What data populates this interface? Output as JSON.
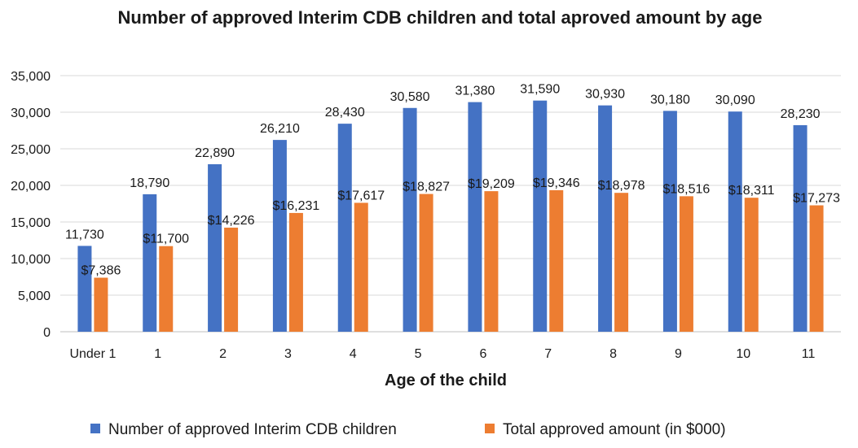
{
  "chart_data": {
    "type": "bar",
    "title": "Number of approved Interim CDB children and total aproved amount by age",
    "xlabel": "Age of the child",
    "ylabel": "",
    "ylim": [
      0,
      35000
    ],
    "yticks": [
      0,
      5000,
      10000,
      15000,
      20000,
      25000,
      30000,
      35000
    ],
    "ytick_labels": [
      "0",
      "5,000",
      "10,000",
      "15,000",
      "20,000",
      "25,000",
      "30,000",
      "35,000"
    ],
    "grid": true,
    "legend_position": "bottom",
    "categories": [
      "Under 1",
      "1",
      "2",
      "3",
      "4",
      "5",
      "6",
      "7",
      "8",
      "9",
      "10",
      "11"
    ],
    "series": [
      {
        "name": "Number of approved Interim CDB children",
        "color": "#4472c4",
        "values": [
          11730,
          18790,
          22890,
          26210,
          28430,
          30580,
          31380,
          31590,
          30930,
          30180,
          30090,
          28230
        ],
        "labels": [
          "11,730",
          "18,790",
          "22,890",
          "26,210",
          "28,430",
          "30,580",
          "31,380",
          "31,590",
          "30,930",
          "30,180",
          "30,090",
          "28,230"
        ]
      },
      {
        "name": "Total approved amount (in $000)",
        "color": "#ed7d31",
        "values": [
          7386,
          11700,
          14226,
          16231,
          17617,
          18827,
          19209,
          19346,
          18978,
          18516,
          18311,
          17273
        ],
        "labels": [
          "$7,386",
          "$11,700",
          "$14,226",
          "$16,231",
          "$17,617",
          "$18,827",
          "$19,209",
          "$19,346",
          "$18,978",
          "$18,516",
          "$18,311",
          "$17,273"
        ]
      }
    ]
  }
}
